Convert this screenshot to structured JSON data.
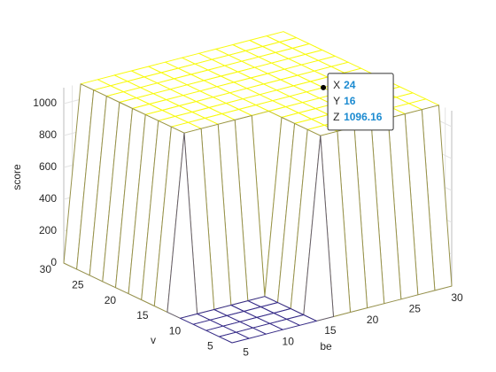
{
  "chart_data": {
    "type": "mesh",
    "xlabel": "be",
    "ylabel": "v",
    "zlabel": "score",
    "x": [
      4,
      6,
      8,
      10,
      12,
      14,
      16,
      18,
      20,
      22,
      24,
      26,
      28,
      30
    ],
    "y": [
      4,
      6,
      8,
      10,
      12,
      14,
      16,
      18,
      20,
      22,
      24,
      26,
      28,
      30
    ],
    "z": [
      [
        0,
        0,
        0,
        0,
        0,
        0,
        0,
        0,
        0,
        0,
        0,
        0,
        0,
        0
      ],
      [
        0,
        0,
        0,
        0,
        0,
        0,
        1096.16,
        1096.16,
        1096.16,
        1096.16,
        1096.16,
        1096.16,
        1096.16,
        1096.16
      ],
      [
        0,
        0,
        0,
        0,
        0,
        0,
        1096.16,
        1096.16,
        1096.16,
        1096.16,
        1096.16,
        1096.16,
        1096.16,
        1096.16
      ],
      [
        0,
        0,
        0,
        0,
        0,
        0,
        1096.16,
        1096.16,
        1096.16,
        1096.16,
        1096.16,
        1096.16,
        1096.16,
        1096.16
      ],
      [
        0,
        0,
        0,
        0,
        0,
        0,
        1096.16,
        1096.16,
        1096.16,
        1096.16,
        1096.16,
        1096.16,
        1096.16,
        1096.16
      ],
      [
        0,
        1096.16,
        1096.16,
        1096.16,
        1096.16,
        1096.16,
        1096.16,
        1096.16,
        1096.16,
        1096.16,
        1096.16,
        1096.16,
        1096.16,
        1096.16
      ],
      [
        0,
        1096.16,
        1096.16,
        1096.16,
        1096.16,
        1096.16,
        1096.16,
        1096.16,
        1096.16,
        1096.16,
        1096.16,
        1096.16,
        1096.16,
        1096.16
      ],
      [
        0,
        1096.16,
        1096.16,
        1096.16,
        1096.16,
        1096.16,
        1096.16,
        1096.16,
        1096.16,
        1096.16,
        1096.16,
        1096.16,
        1096.16,
        1096.16
      ],
      [
        0,
        1096.16,
        1096.16,
        1096.16,
        1096.16,
        1096.16,
        1096.16,
        1096.16,
        1096.16,
        1096.16,
        1096.16,
        1096.16,
        1096.16,
        1096.16
      ],
      [
        0,
        1096.16,
        1096.16,
        1096.16,
        1096.16,
        1096.16,
        1096.16,
        1096.16,
        1096.16,
        1096.16,
        1096.16,
        1096.16,
        1096.16,
        1096.16
      ],
      [
        0,
        1096.16,
        1096.16,
        1096.16,
        1096.16,
        1096.16,
        1096.16,
        1096.16,
        1096.16,
        1096.16,
        1096.16,
        1096.16,
        1096.16,
        1096.16
      ],
      [
        0,
        1096.16,
        1096.16,
        1096.16,
        1096.16,
        1096.16,
        1096.16,
        1096.16,
        1096.16,
        1096.16,
        1096.16,
        1096.16,
        1096.16,
        1096.16
      ],
      [
        0,
        1096.16,
        1096.16,
        1096.16,
        1096.16,
        1096.16,
        1096.16,
        1096.16,
        1096.16,
        1096.16,
        1096.16,
        1096.16,
        1096.16,
        1096.16
      ],
      [
        0,
        1096.16,
        1096.16,
        1096.16,
        1096.16,
        1096.16,
        1096.16,
        1096.16,
        1096.16,
        1096.16,
        1096.16,
        1096.16,
        1096.16,
        1096.16
      ]
    ],
    "xlim": [
      4,
      30
    ],
    "ylim": [
      4,
      30
    ],
    "zlim": [
      0,
      1100
    ],
    "xticks": [
      5,
      10,
      15,
      20,
      25,
      30
    ],
    "yticks": [
      5,
      10,
      15,
      20,
      25,
      30
    ],
    "zticks": [
      0,
      200,
      400,
      600,
      800,
      1000
    ],
    "grid": true,
    "colormap": [
      "#352a87",
      "#f9fb0e"
    ],
    "datatip": {
      "x_label": "X",
      "x": 24,
      "y_label": "Y",
      "y": 16,
      "z_label": "Z",
      "z": 1096.16
    }
  }
}
